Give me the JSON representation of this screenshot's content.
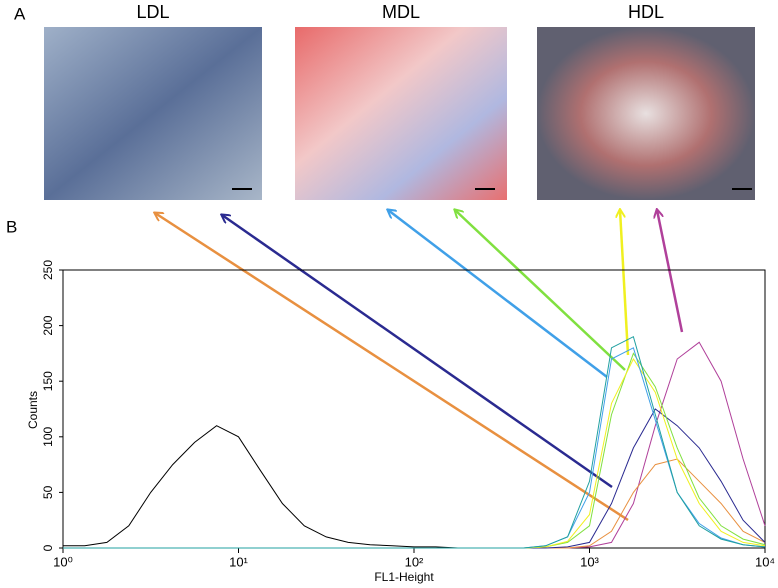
{
  "panels": {
    "a": "A",
    "b": "B"
  },
  "images": [
    "LDL",
    "MDL",
    "HDL"
  ],
  "chart_data": {
    "type": "line",
    "xlabel": "FL1-Height",
    "ylabel": "Counts",
    "log_x": true,
    "xlim": [
      1,
      10000
    ],
    "ylim": [
      0,
      250
    ],
    "xticks": [
      {
        "value": 1,
        "label": "10⁰"
      },
      {
        "value": 10,
        "label": "10¹"
      },
      {
        "value": 100,
        "label": "10²"
      },
      {
        "value": 1000,
        "label": "10³"
      },
      {
        "value": 10000,
        "label": "10⁴"
      }
    ],
    "yticks": [
      0,
      50,
      100,
      150,
      200,
      250
    ],
    "x": [
      1,
      1.33,
      1.78,
      2.37,
      3.16,
      4.22,
      5.62,
      7.5,
      10,
      13.3,
      17.8,
      23.7,
      31.6,
      42.2,
      56.2,
      75,
      100,
      133,
      178,
      237,
      316,
      422,
      562,
      750,
      1000,
      1334,
      1778,
      2371,
      3162,
      4217,
      5623,
      7499,
      10000
    ],
    "series": [
      {
        "color": "#000000",
        "values": [
          2,
          2,
          5,
          20,
          50,
          75,
          95,
          110,
          100,
          70,
          40,
          20,
          10,
          5,
          3,
          2,
          1,
          1,
          0,
          0,
          0,
          0,
          0,
          0,
          0,
          0,
          0,
          0,
          0,
          0,
          0,
          0,
          0
        ]
      },
      {
        "color": "#b0409a",
        "values": [
          0,
          0,
          0,
          0,
          0,
          0,
          0,
          0,
          0,
          0,
          0,
          0,
          0,
          0,
          0,
          0,
          0,
          0,
          0,
          0,
          0,
          0,
          0,
          0,
          1,
          5,
          40,
          110,
          170,
          185,
          150,
          80,
          20
        ]
      },
      {
        "color": "#e89040",
        "values": [
          0,
          0,
          0,
          0,
          0,
          0,
          0,
          0,
          0,
          0,
          0,
          0,
          0,
          0,
          0,
          0,
          0,
          0,
          0,
          0,
          0,
          0,
          0,
          0,
          2,
          15,
          50,
          75,
          80,
          60,
          40,
          15,
          5
        ]
      },
      {
        "color": "#2a2a90",
        "values": [
          0,
          0,
          0,
          0,
          0,
          0,
          0,
          0,
          0,
          0,
          0,
          0,
          0,
          0,
          0,
          0,
          0,
          0,
          0,
          0,
          0,
          0,
          0,
          1,
          5,
          40,
          90,
          125,
          110,
          90,
          60,
          25,
          5
        ]
      },
      {
        "color": "#80e040",
        "values": [
          0,
          0,
          0,
          0,
          0,
          0,
          0,
          0,
          0,
          0,
          0,
          0,
          0,
          0,
          0,
          0,
          0,
          0,
          0,
          0,
          0,
          0,
          1,
          5,
          20,
          120,
          175,
          145,
          90,
          45,
          20,
          8,
          3
        ]
      },
      {
        "color": "#f0f020",
        "values": [
          0,
          0,
          0,
          0,
          0,
          0,
          0,
          0,
          0,
          0,
          0,
          0,
          0,
          0,
          0,
          0,
          0,
          0,
          0,
          0,
          0,
          0,
          1,
          6,
          30,
          130,
          170,
          140,
          80,
          40,
          15,
          5,
          2
        ]
      },
      {
        "color": "#40a0e8",
        "values": [
          0,
          0,
          0,
          0,
          0,
          0,
          0,
          0,
          0,
          0,
          0,
          0,
          0,
          0,
          0,
          0,
          0,
          0,
          0,
          0,
          0,
          0,
          2,
          10,
          50,
          170,
          180,
          115,
          50,
          22,
          9,
          3,
          1
        ]
      },
      {
        "color": "#20a0a0",
        "values": [
          0,
          0,
          0,
          0,
          0,
          0,
          0,
          0,
          0,
          0,
          0,
          0,
          0,
          0,
          0,
          0,
          0,
          0,
          0,
          0,
          0,
          0,
          2,
          10,
          60,
          180,
          190,
          120,
          50,
          20,
          8,
          3,
          1
        ]
      }
    ]
  }
}
